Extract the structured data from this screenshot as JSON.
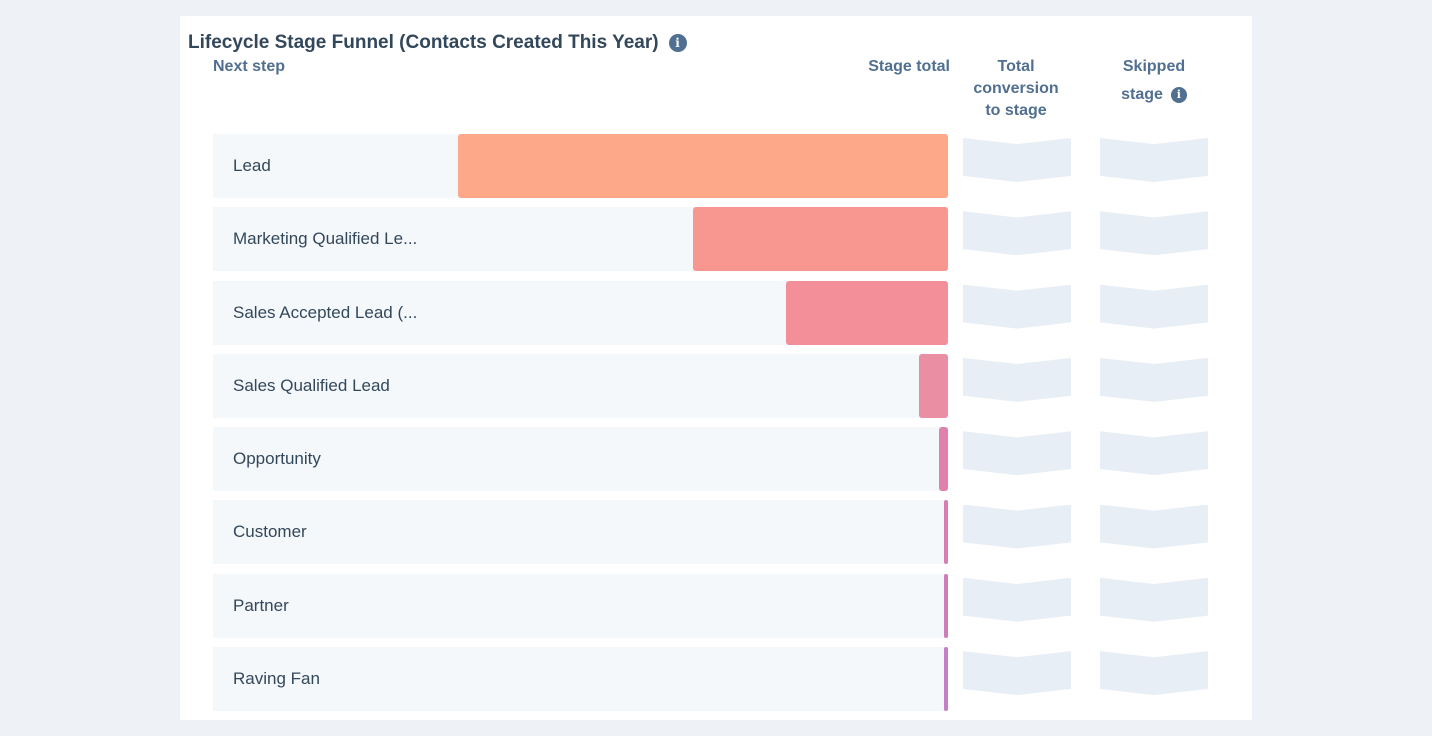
{
  "chart_title": "Lifecycle Stage Funnel (Contacts Created This Year)",
  "title_prefix": "",
  "headers": {
    "next_step": "Next step",
    "stage_total": "Stage total",
    "total_conversion_1": "Total",
    "total_conversion_2": "conversion",
    "total_conversion_3": "to stage",
    "skipped_1": "Skipped",
    "skipped_2": "stage"
  },
  "icons": {
    "title_info": "info-icon",
    "skipped_info": "info-icon"
  },
  "colors": {
    "lead": "#fda888",
    "mql": "#f8978f",
    "sal": "#f38f98",
    "sql": "#ea8fa3",
    "opportunity": "#e081ad",
    "customer": "#d97eb3",
    "partner": "#cf7cbb",
    "raving_fan": "#c47fc7"
  },
  "chart_data": {
    "type": "bar",
    "orientation": "horizontal-funnel",
    "title": "Lifecycle Stage Funnel (Contacts Created This Year)",
    "categories": [
      "Lead",
      "Marketing Qualified Le...",
      "Sales Accepted Lead (...",
      "Sales Qualified Lead",
      "Opportunity",
      "Customer",
      "Partner",
      "Raving Fan"
    ],
    "values": [
      100,
      52,
      33,
      6,
      1.8,
      0.8,
      0.8,
      0.8
    ],
    "color_keys": [
      "lead",
      "mql",
      "sal",
      "sql",
      "opportunity",
      "customer",
      "partner",
      "raving_fan"
    ],
    "xlim": [
      0,
      100
    ],
    "total_conversion": [
      "",
      "",
      "",
      "",
      "",
      "",
      "",
      ""
    ],
    "skipped_stage": [
      "",
      "",
      "",
      "",
      "",
      "",
      "",
      ""
    ]
  }
}
